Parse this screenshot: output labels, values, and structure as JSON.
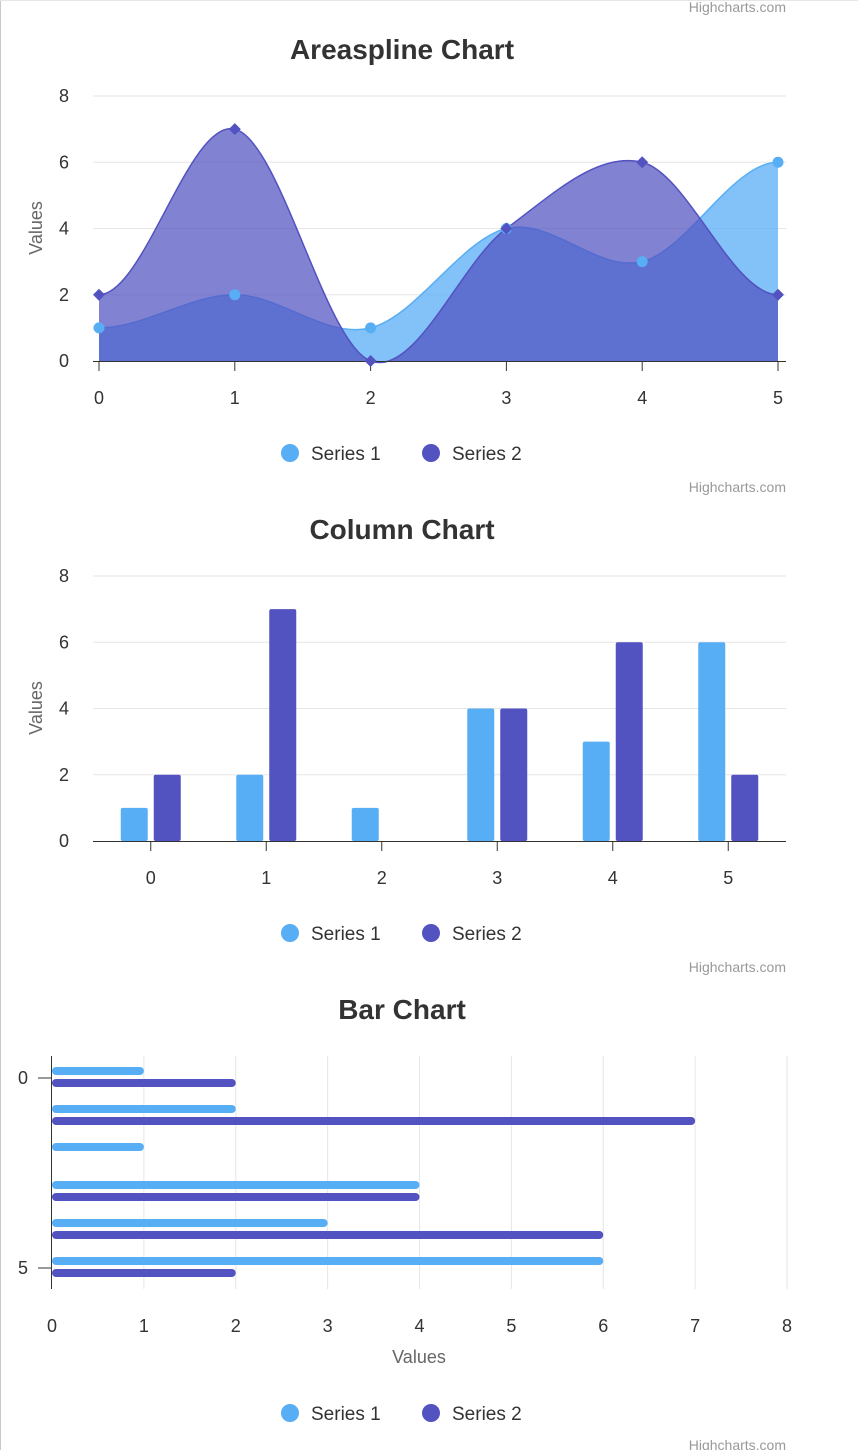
{
  "colors": {
    "series1": "#58aef5",
    "series2": "#5252c1"
  },
  "credit": "Highcharts.com",
  "chart_data": [
    {
      "type": "areaspline",
      "title": "Areaspline Chart",
      "ylabel": "Values",
      "xlabel": "",
      "categories": [
        "0",
        "1",
        "2",
        "3",
        "4",
        "5"
      ],
      "ylim": [
        0,
        8
      ],
      "yticks": [
        0,
        2,
        4,
        6,
        8
      ],
      "grid": true,
      "legend": "bottom-center",
      "series": [
        {
          "name": "Series 1",
          "values": [
            1,
            2,
            1,
            4,
            3,
            6
          ]
        },
        {
          "name": "Series 2",
          "values": [
            2,
            7,
            0,
            4,
            6,
            2
          ]
        }
      ]
    },
    {
      "type": "bar",
      "title": "Column Chart",
      "ylabel": "Values",
      "xlabel": "",
      "categories": [
        "0",
        "1",
        "2",
        "3",
        "4",
        "5"
      ],
      "ylim": [
        0,
        8
      ],
      "yticks": [
        0,
        2,
        4,
        6,
        8
      ],
      "grid": true,
      "legend": "bottom-center",
      "series": [
        {
          "name": "Series 1",
          "values": [
            1,
            2,
            1,
            4,
            3,
            6
          ]
        },
        {
          "name": "Series 2",
          "values": [
            2,
            7,
            0,
            4,
            6,
            2
          ]
        }
      ]
    },
    {
      "type": "bar",
      "orientation": "horizontal",
      "title": "Bar Chart",
      "ylabel": "",
      "xlabel": "Values",
      "category_ticks": [
        "0",
        "5"
      ],
      "xlim": [
        0,
        8
      ],
      "xticks": [
        0,
        1,
        2,
        3,
        4,
        5,
        6,
        7,
        8
      ],
      "grid": true,
      "legend": "bottom-center",
      "series": [
        {
          "name": "Series 1",
          "values": [
            1,
            2,
            1,
            4,
            3,
            6
          ]
        },
        {
          "name": "Series 2",
          "values": [
            2,
            7,
            0,
            4,
            6,
            2
          ]
        }
      ]
    }
  ]
}
